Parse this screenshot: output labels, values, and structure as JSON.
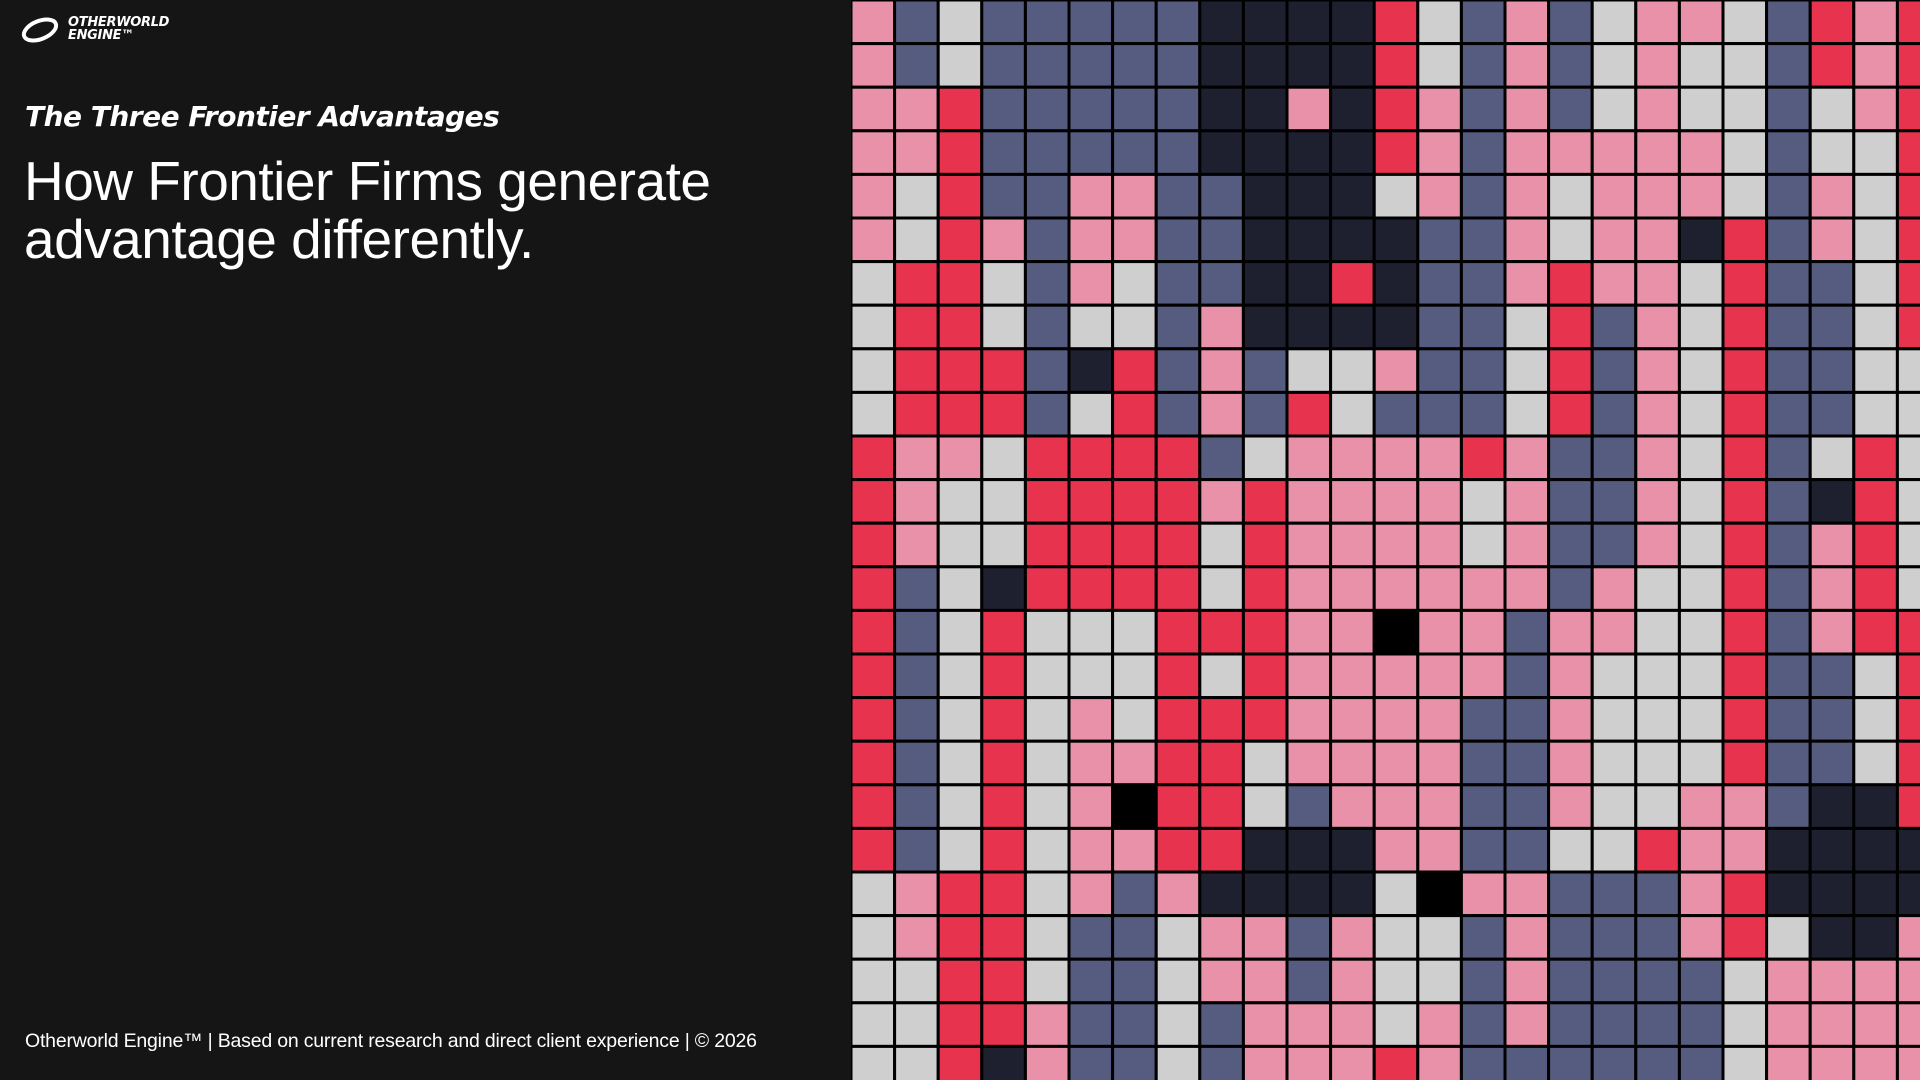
{
  "logo": {
    "line1": "OTHERWORLD",
    "line2": "ENGINE™"
  },
  "eyebrow": "The Three Frontier Advantages",
  "headline": [
    "How Frontier Firms generate",
    "advantage differently."
  ],
  "footer": "Otherworld Engine™ | Based on current research and direct client experience | © 2026"
}
